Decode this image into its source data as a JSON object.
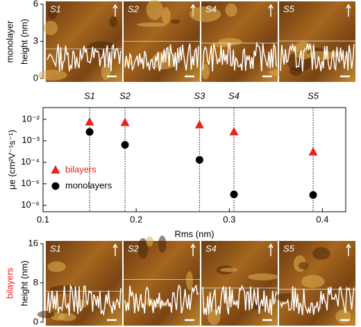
{
  "chart_data": [
    {
      "type": "image-panel",
      "title": "monolayer",
      "title_color": "#000000",
      "ylabel": "height (nm)",
      "ylim": [
        0,
        6
      ],
      "yticks": [
        0,
        3,
        6
      ],
      "panels": [
        "S1",
        "S2",
        "S4",
        "S5"
      ]
    },
    {
      "type": "scatter",
      "ylabel": "μe (cm²V⁻¹s⁻¹)",
      "xlabel": "Rms (nm)",
      "labels": [
        "S1",
        "S2",
        "S3",
        "S4",
        "S5"
      ],
      "x": [
        0.15,
        0.188,
        0.268,
        0.305,
        0.39
      ],
      "series": [
        {
          "name": "bilayers",
          "color": "#e8231e",
          "marker": "triangle",
          "values": [
            0.0075,
            0.007,
            0.0055,
            0.0026,
            0.0003
          ]
        },
        {
          "name": "monolayers",
          "color": "#000000",
          "marker": "circle",
          "values": [
            0.0026,
            0.00065,
            0.00013,
            3.2e-06,
            3e-06
          ]
        }
      ],
      "xlim": [
        0.1,
        0.425
      ],
      "xticks": [
        0.1,
        0.2,
        0.3,
        0.4
      ],
      "ylim": [
        5e-07,
        0.035
      ],
      "ylog": true,
      "yticks": [
        {
          "value": 1e-06,
          "label": "10⁻⁶"
        },
        {
          "value": 1e-05,
          "label": "10⁻⁵"
        },
        {
          "value": 0.0001,
          "label": "10⁻⁴"
        },
        {
          "value": 0.001,
          "label": "10⁻³"
        },
        {
          "value": 0.01,
          "label": "10⁻²"
        }
      ]
    },
    {
      "type": "image-panel",
      "title": "bilayers",
      "title_color": "#e8231e",
      "ylabel": "height (nm)",
      "ylim": [
        0,
        16
      ],
      "yticks": [
        0,
        8,
        16
      ],
      "panels": [
        "S1",
        "S2",
        "S4",
        "S5"
      ]
    }
  ]
}
